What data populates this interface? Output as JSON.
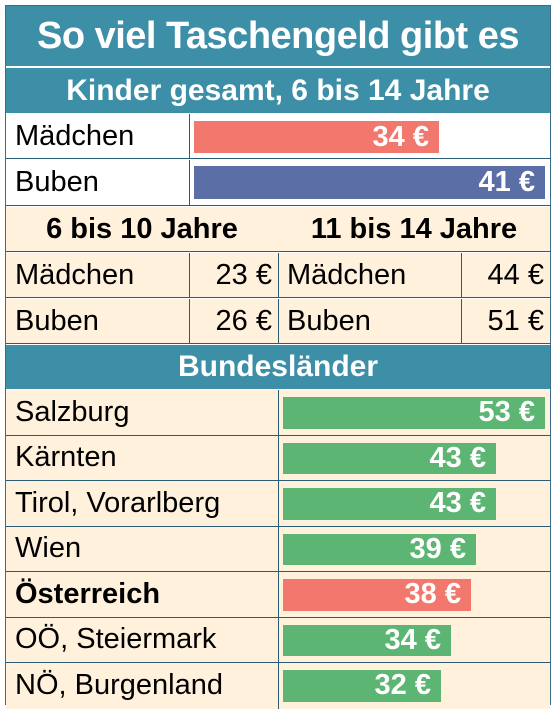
{
  "title": "So viel Taschengeld gibt es",
  "subtitle": "Kinder gesamt, 6 bis 14 Jahre",
  "colors": {
    "header": "#3c8fa7",
    "girls": "#f2776c",
    "boys": "#5b6fa6",
    "region": "#5db573",
    "austria": "#f2776c",
    "cream": "#fff1dc"
  },
  "overall": [
    {
      "label": "Mädchen",
      "value": 34,
      "value_label": "34 €"
    },
    {
      "label": "Buben",
      "value": 41,
      "value_label": "41 €"
    }
  ],
  "age_groups": [
    {
      "heading": "6 bis 10 Jahre",
      "rows": [
        {
          "label": "Mädchen",
          "value_label": "23 €"
        },
        {
          "label": "Buben",
          "value_label": "26 €"
        }
      ]
    },
    {
      "heading": "11 bis 14 Jahre",
      "rows": [
        {
          "label": "Mädchen",
          "value_label": "44 €"
        },
        {
          "label": "Buben",
          "value_label": "51 €"
        }
      ]
    }
  ],
  "regions_heading": "Bundesländer",
  "regions": [
    {
      "label": "Salzburg",
      "value": 53,
      "value_label": "53 €",
      "highlight": false
    },
    {
      "label": "Kärnten",
      "value": 43,
      "value_label": "43 €",
      "highlight": false
    },
    {
      "label": "Tirol, Vorarlberg",
      "value": 43,
      "value_label": "43 €",
      "highlight": false
    },
    {
      "label": "Wien",
      "value": 39,
      "value_label": "39 €",
      "highlight": false
    },
    {
      "label": "Österreich",
      "value": 38,
      "value_label": "38 €",
      "highlight": true
    },
    {
      "label": "OÖ, Steiermark",
      "value": 34,
      "value_label": "34 €",
      "highlight": false
    },
    {
      "label": "NÖ, Burgenland",
      "value": 32,
      "value_label": "32 €",
      "highlight": false
    }
  ],
  "chart_data": [
    {
      "type": "bar",
      "title": "Kinder gesamt, 6 bis 14 Jahre",
      "categories": [
        "Mädchen",
        "Buben"
      ],
      "values": [
        34,
        41
      ],
      "unit": "€"
    },
    {
      "type": "table",
      "columns": [
        "6 bis 10 Jahre",
        "11 bis 14 Jahre"
      ],
      "rows": [
        {
          "label": "Mädchen",
          "values": [
            23,
            44
          ]
        },
        {
          "label": "Buben",
          "values": [
            26,
            51
          ]
        }
      ],
      "unit": "€"
    },
    {
      "type": "bar",
      "title": "Bundesländer",
      "categories": [
        "Salzburg",
        "Kärnten",
        "Tirol, Vorarlberg",
        "Wien",
        "Österreich",
        "OÖ, Steiermark",
        "NÖ, Burgenland"
      ],
      "values": [
        53,
        43,
        43,
        39,
        38,
        34,
        32
      ],
      "unit": "€"
    }
  ]
}
